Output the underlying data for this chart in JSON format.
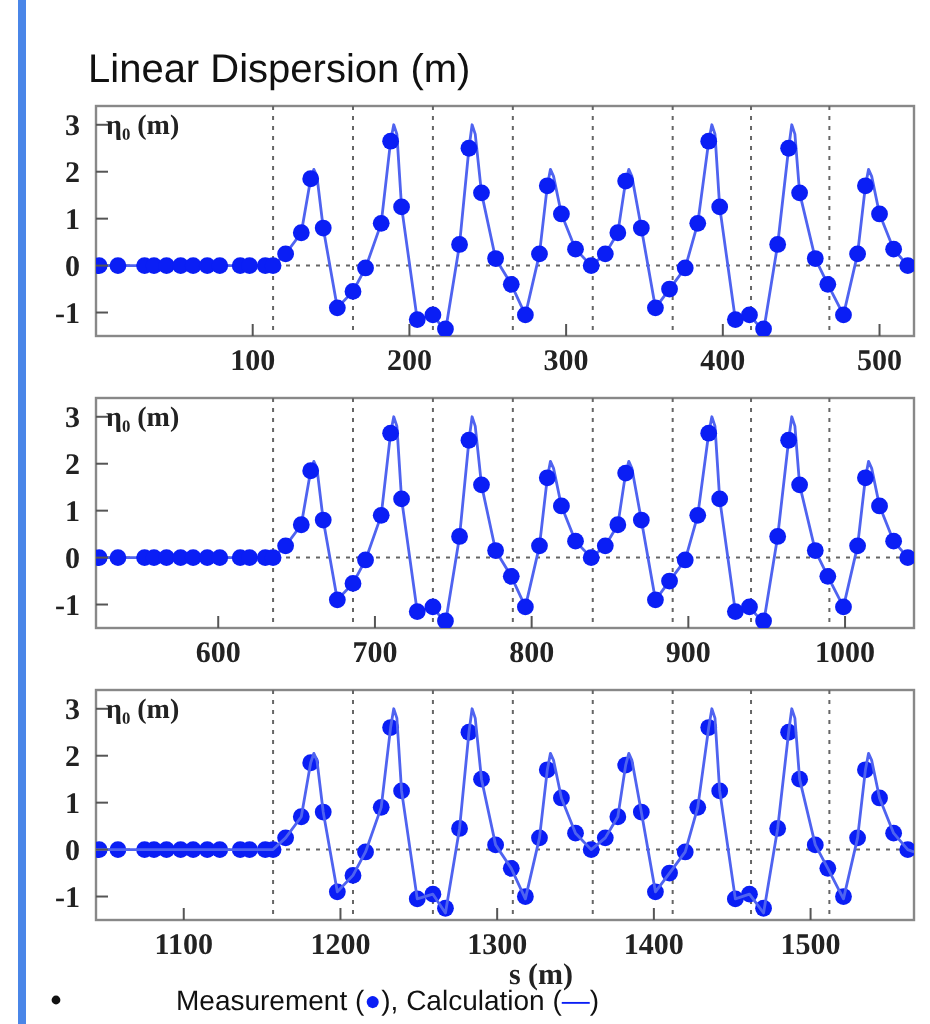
{
  "chart_data": [
    {
      "type": "scatter",
      "title": "Linear Dispersion (m)",
      "ylabel": "η₀ (m)",
      "xlim": [
        0,
        522
      ],
      "xticks": [
        100,
        200,
        300,
        400,
        500
      ],
      "ylim": [
        -1.5,
        3.4
      ],
      "yticks": [
        -1,
        0,
        1,
        2,
        3
      ],
      "line_style": "solid",
      "ref_lines": [
        {
          "axis": "y",
          "value": 0
        },
        {
          "axis": "x",
          "value": 113
        },
        {
          "axis": "x",
          "value": 164
        },
        {
          "axis": "x",
          "value": 215
        },
        {
          "axis": "x",
          "value": 266
        },
        {
          "axis": "x",
          "value": 317
        },
        {
          "axis": "x",
          "value": 368
        },
        {
          "axis": "x",
          "value": 418
        },
        {
          "axis": "x",
          "value": 468
        }
      ],
      "series": [
        {
          "type": "line",
          "color": "#4f63f0",
          "x": [
            0,
            113,
            121,
            131,
            137,
            139,
            141,
            145,
            154,
            164,
            172,
            182,
            188,
            190,
            192,
            195,
            205,
            215,
            223,
            232,
            238,
            240,
            242,
            246,
            255,
            265,
            274,
            283,
            288,
            290,
            292,
            297,
            306,
            316,
            325,
            333,
            338,
            340,
            342,
            348,
            357,
            366,
            376,
            384,
            391,
            393,
            395,
            398,
            408,
            417,
            426,
            435,
            442,
            444,
            446,
            449,
            459,
            467,
            477,
            486,
            491,
            493,
            495,
            500,
            509,
            518,
            522
          ],
          "values": [
            0,
            0,
            0.25,
            0.7,
            1.85,
            2.05,
            1.9,
            0.8,
            -0.9,
            -0.55,
            -0.05,
            0.9,
            2.65,
            3.0,
            2.8,
            1.25,
            -1.15,
            -1.05,
            -1.4,
            0.45,
            2.5,
            3.0,
            2.8,
            1.55,
            0.15,
            -0.4,
            -1.05,
            0.25,
            1.7,
            2.05,
            1.9,
            1.1,
            0.35,
            0,
            0.25,
            0.7,
            1.8,
            2.05,
            1.9,
            0.8,
            -0.9,
            -0.5,
            -0.05,
            0.9,
            2.65,
            3.0,
            2.8,
            1.25,
            -1.15,
            -1.05,
            -1.4,
            0.45,
            2.5,
            3.0,
            2.8,
            1.55,
            0.15,
            -0.4,
            -1.05,
            0.25,
            1.7,
            2.05,
            1.9,
            1.1,
            0.35,
            0,
            -0.05
          ]
        },
        {
          "type": "scatter",
          "marker": "circle",
          "color": "#0a1ef5",
          "x": [
            2,
            14,
            31,
            37,
            45,
            54,
            62,
            71,
            79,
            92,
            98,
            108,
            113,
            121,
            131,
            137,
            145,
            154,
            164,
            172,
            182,
            188,
            195,
            205,
            215,
            223,
            232,
            238,
            246,
            255,
            265,
            274,
            283,
            288,
            297,
            306,
            316,
            325,
            333,
            338,
            348,
            357,
            366,
            376,
            384,
            391,
            398,
            408,
            417,
            426,
            435,
            442,
            449,
            459,
            467,
            477,
            486,
            491,
            500,
            509,
            518
          ],
          "values": [
            0,
            0,
            0,
            0,
            0,
            0,
            0,
            0,
            0,
            0,
            0,
            0,
            0,
            0.25,
            0.7,
            1.85,
            0.8,
            -0.9,
            -0.55,
            -0.05,
            0.9,
            2.65,
            1.25,
            -1.15,
            -1.05,
            -1.35,
            0.45,
            2.5,
            1.55,
            0.15,
            -0.4,
            -1.05,
            0.25,
            1.7,
            1.1,
            0.35,
            0,
            0.25,
            0.7,
            1.8,
            0.8,
            -0.9,
            -0.5,
            -0.05,
            0.9,
            2.65,
            1.25,
            -1.15,
            -1.05,
            -1.35,
            0.45,
            2.5,
            1.55,
            0.15,
            -0.4,
            -1.05,
            0.25,
            1.7,
            1.1,
            0.35,
            0
          ]
        }
      ]
    },
    {
      "type": "scatter",
      "ylabel": "η₀ (m)",
      "xlim": [
        522,
        1044
      ],
      "xticks": [
        600,
        700,
        800,
        900,
        1000
      ],
      "ylim": [
        -1.5,
        3.4
      ],
      "yticks": [
        -1,
        0,
        1,
        2,
        3
      ],
      "line_style": "solid",
      "ref_lines": [
        {
          "axis": "y",
          "value": 0
        },
        {
          "axis": "x",
          "value": 635
        },
        {
          "axis": "x",
          "value": 686
        },
        {
          "axis": "x",
          "value": 737
        },
        {
          "axis": "x",
          "value": 788
        },
        {
          "axis": "x",
          "value": 839
        },
        {
          "axis": "x",
          "value": 890
        },
        {
          "axis": "x",
          "value": 940
        },
        {
          "axis": "x",
          "value": 990
        }
      ],
      "series": [
        {
          "type": "line",
          "color": "#4f63f0",
          "x": [
            522,
            635,
            643,
            653,
            659,
            661,
            663,
            667,
            676,
            686,
            694,
            704,
            710,
            712,
            714,
            717,
            727,
            737,
            745,
            754,
            760,
            762,
            764,
            768,
            777,
            787,
            796,
            805,
            810,
            812,
            814,
            819,
            828,
            838,
            847,
            855,
            860,
            862,
            864,
            870,
            879,
            888,
            898,
            906,
            913,
            915,
            917,
            920,
            930,
            939,
            948,
            957,
            964,
            966,
            968,
            971,
            981,
            989,
            999,
            1008,
            1013,
            1015,
            1017,
            1022,
            1031,
            1040,
            1044
          ],
          "values": [
            0,
            0,
            0.25,
            0.7,
            1.85,
            2.05,
            1.9,
            0.8,
            -0.9,
            -0.55,
            -0.05,
            0.9,
            2.65,
            3.0,
            2.8,
            1.25,
            -1.15,
            -1.05,
            -1.4,
            0.45,
            2.5,
            3.0,
            2.8,
            1.55,
            0.15,
            -0.4,
            -1.05,
            0.25,
            1.7,
            2.05,
            1.9,
            1.1,
            0.35,
            0,
            0.25,
            0.7,
            1.8,
            2.05,
            1.9,
            0.8,
            -0.9,
            -0.5,
            -0.05,
            0.9,
            2.65,
            3.0,
            2.8,
            1.25,
            -1.15,
            -1.05,
            -1.4,
            0.45,
            2.5,
            3.0,
            2.8,
            1.55,
            0.15,
            -0.4,
            -1.05,
            0.25,
            1.7,
            2.05,
            1.9,
            1.1,
            0.35,
            0,
            -0.05
          ]
        },
        {
          "type": "scatter",
          "marker": "circle",
          "color": "#0a1ef5",
          "x": [
            524,
            536,
            553,
            559,
            567,
            576,
            584,
            593,
            601,
            614,
            620,
            630,
            635,
            643,
            653,
            659,
            667,
            676,
            686,
            694,
            704,
            710,
            717,
            727,
            737,
            745,
            754,
            760,
            768,
            777,
            787,
            796,
            805,
            810,
            819,
            828,
            838,
            847,
            855,
            860,
            870,
            879,
            888,
            898,
            906,
            913,
            920,
            930,
            939,
            948,
            957,
            964,
            971,
            981,
            989,
            999,
            1008,
            1013,
            1022,
            1031,
            1040
          ],
          "values": [
            0,
            0,
            0,
            0,
            0,
            0,
            0,
            0,
            0,
            0,
            0,
            0,
            0,
            0.25,
            0.7,
            1.85,
            0.8,
            -0.9,
            -0.55,
            -0.05,
            0.9,
            2.65,
            1.25,
            -1.15,
            -1.05,
            -1.35,
            0.45,
            2.5,
            1.55,
            0.15,
            -0.4,
            -1.05,
            0.25,
            1.7,
            1.1,
            0.35,
            0,
            0.25,
            0.7,
            1.8,
            0.8,
            -0.9,
            -0.5,
            -0.05,
            0.9,
            2.65,
            1.25,
            -1.15,
            -1.05,
            -1.35,
            0.45,
            2.5,
            1.55,
            0.15,
            -0.4,
            -1.05,
            0.25,
            1.7,
            1.1,
            0.35,
            0
          ]
        }
      ]
    },
    {
      "type": "scatter",
      "ylabel": "η₀ (m)",
      "xlabel": "s (m)",
      "annotations": [
        "Measurement (●), Calculation (—)"
      ],
      "xlim": [
        1044,
        1566
      ],
      "xticks": [
        1100,
        1200,
        1300,
        1400,
        1500
      ],
      "ylim": [
        -1.5,
        3.4
      ],
      "yticks": [
        -1,
        0,
        1,
        2,
        3
      ],
      "line_style": "solid",
      "ref_lines": [
        {
          "axis": "y",
          "value": 0
        },
        {
          "axis": "x",
          "value": 1157
        },
        {
          "axis": "x",
          "value": 1208
        },
        {
          "axis": "x",
          "value": 1259
        },
        {
          "axis": "x",
          "value": 1310
        },
        {
          "axis": "x",
          "value": 1361
        },
        {
          "axis": "x",
          "value": 1412
        },
        {
          "axis": "x",
          "value": 1462
        },
        {
          "axis": "x",
          "value": 1512
        }
      ],
      "series": [
        {
          "type": "scatter",
          "marker": "circle",
          "color": "#0a1ef5",
          "x": [
            1046,
            1058,
            1075,
            1081,
            1089,
            1098,
            1106,
            1115,
            1123,
            1136,
            1142,
            1152,
            1157,
            1165,
            1175,
            1181,
            1189,
            1198,
            1208,
            1216,
            1226,
            1232,
            1239,
            1249,
            1259,
            1267,
            1276,
            1282,
            1290,
            1299,
            1309,
            1318,
            1327,
            1332,
            1341,
            1350,
            1360,
            1369,
            1377,
            1382,
            1392,
            1401,
            1410,
            1420,
            1428,
            1435,
            1442,
            1452,
            1461,
            1470,
            1479,
            1486,
            1493,
            1503,
            1511,
            1521,
            1530,
            1535,
            1544,
            1553,
            1562
          ],
          "values": [
            0,
            0,
            0,
            0,
            0,
            0,
            0,
            0,
            0,
            0,
            0,
            0,
            0,
            0.25,
            0.7,
            1.85,
            0.8,
            -0.9,
            -0.55,
            -0.05,
            0.9,
            2.6,
            1.25,
            -1.05,
            -0.95,
            -1.25,
            0.45,
            2.5,
            1.5,
            0.1,
            -0.4,
            -1.0,
            0.25,
            1.7,
            1.1,
            0.35,
            0,
            0.25,
            0.7,
            1.8,
            0.8,
            -0.9,
            -0.5,
            -0.05,
            0.9,
            2.6,
            1.25,
            -1.05,
            -0.95,
            -1.25,
            0.45,
            2.5,
            1.5,
            0.1,
            -0.4,
            -1.0,
            0.25,
            1.7,
            1.1,
            0.35,
            0
          ]
        },
        {
          "type": "line",
          "color": "#4f63f0",
          "x": [
            1044,
            1157,
            1165,
            1175,
            1181,
            1183,
            1185,
            1189,
            1198,
            1208,
            1216,
            1226,
            1232,
            1234,
            1236,
            1239,
            1249,
            1259,
            1267,
            1276,
            1282,
            1284,
            1286,
            1290,
            1299,
            1309,
            1318,
            1327,
            1332,
            1334,
            1336,
            1341,
            1350,
            1360,
            1369,
            1377,
            1382,
            1384,
            1386,
            1392,
            1401,
            1410,
            1420,
            1428,
            1435,
            1437,
            1439,
            1442,
            1452,
            1461,
            1470,
            1479,
            1486,
            1488,
            1490,
            1493,
            1503,
            1511,
            1521,
            1530,
            1535,
            1537,
            1539,
            1544,
            1553,
            1562,
            1566
          ],
          "values": [
            0,
            0,
            0.25,
            0.7,
            1.85,
            2.05,
            1.9,
            0.8,
            -0.9,
            -0.55,
            -0.05,
            0.9,
            2.6,
            3.0,
            2.8,
            1.25,
            -1.05,
            -0.95,
            -1.35,
            0.45,
            2.5,
            3.0,
            2.8,
            1.5,
            0.1,
            -0.4,
            -1.05,
            0.25,
            1.7,
            2.05,
            1.9,
            1.1,
            0.35,
            0,
            0.25,
            0.7,
            1.8,
            2.05,
            1.9,
            0.8,
            -0.9,
            -0.5,
            -0.05,
            0.9,
            2.6,
            3.0,
            2.8,
            1.25,
            -1.05,
            -0.95,
            -1.35,
            0.45,
            2.5,
            3.0,
            2.8,
            1.5,
            0.1,
            -0.4,
            -1.05,
            0.25,
            1.7,
            2.05,
            1.9,
            1.1,
            0.35,
            0,
            -0.05
          ]
        }
      ]
    }
  ]
}
